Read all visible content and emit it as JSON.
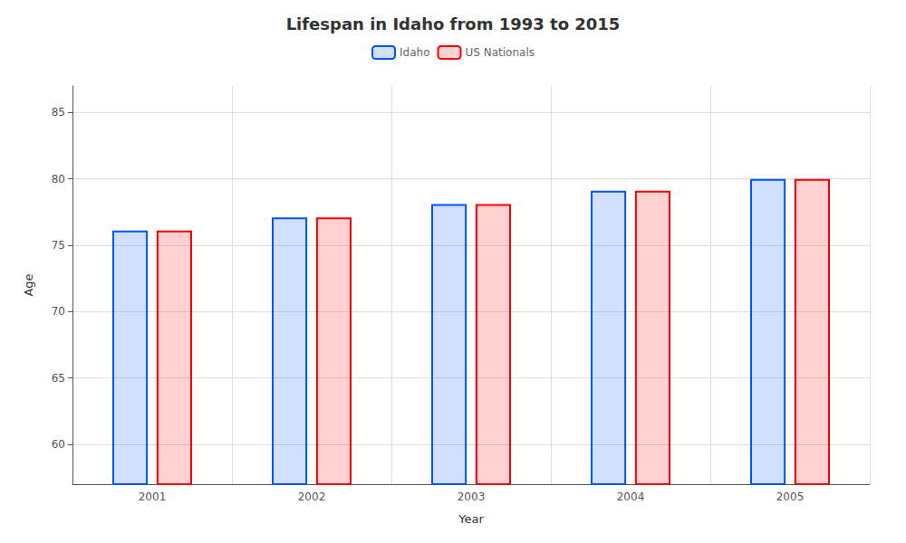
{
  "chart_data": {
    "type": "bar",
    "title": "Lifespan in Idaho from 1993 to 2015",
    "xlabel": "Year",
    "ylabel": "Age",
    "categories": [
      "2001",
      "2002",
      "2003",
      "2004",
      "2005"
    ],
    "series": [
      {
        "name": "Idaho",
        "color": "#0055ff",
        "values": [
          76.1,
          77.1,
          78.1,
          79.1,
          80.0
        ]
      },
      {
        "name": "US Nationals",
        "color": "#ff0000",
        "values": [
          76.1,
          77.1,
          78.1,
          79.1,
          80.0
        ]
      }
    ],
    "ylim": [
      57,
      87
    ],
    "yticks": [
      60,
      65,
      70,
      75,
      80,
      85
    ],
    "grid": true,
    "legend": "top"
  }
}
